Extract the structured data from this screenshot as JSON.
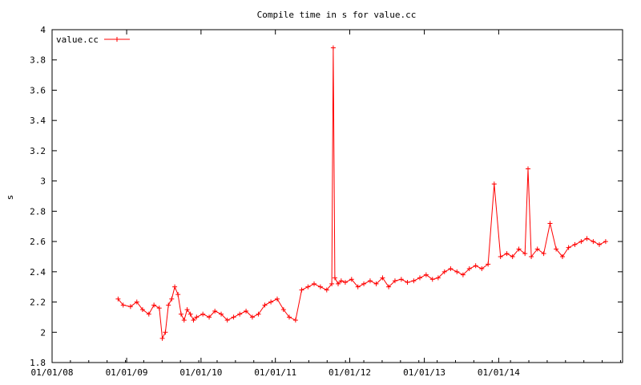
{
  "chart_data": {
    "type": "line",
    "title": "Compile time in s for value.cc",
    "xlabel": "",
    "ylabel": "s",
    "xlim": [
      "2008-01-01",
      "2015-09-01"
    ],
    "ylim": [
      1.8,
      4.0
    ],
    "y_ticks": [
      1.8,
      2.0,
      2.2,
      2.4,
      2.6,
      2.8,
      3.0,
      3.2,
      3.4,
      3.6,
      3.8,
      4.0
    ],
    "y_tick_labels": [
      "1.8",
      "2",
      "2.2",
      "2.4",
      "2.6",
      "2.8",
      "3",
      "3.2",
      "3.4",
      "3.6",
      "3.8",
      "4"
    ],
    "x_ticks": [
      "2008-01-01",
      "2009-01-01",
      "2010-01-01",
      "2011-01-01",
      "2012-01-01",
      "2013-01-01",
      "2014-01-01"
    ],
    "x_tick_labels": [
      "01/01/08",
      "01/01/09",
      "01/01/10",
      "01/01/11",
      "01/01/12",
      "01/01/13",
      "01/01/14"
    ],
    "grid": false,
    "legend": "top-left",
    "marker": "plus",
    "colors": {
      "series": "#ff0000",
      "axis": "#000000",
      "background": "#ffffff"
    },
    "series": [
      {
        "name": "value.cc",
        "x": [
          "2008-11-20",
          "2008-12-15",
          "2009-01-20",
          "2009-02-20",
          "2009-03-20",
          "2009-04-20",
          "2009-05-15",
          "2009-06-10",
          "2009-06-25",
          "2009-07-10",
          "2009-07-25",
          "2009-08-10",
          "2009-08-25",
          "2009-09-10",
          "2009-09-25",
          "2009-10-10",
          "2009-10-25",
          "2009-11-10",
          "2009-11-25",
          "2009-12-10",
          "2010-01-10",
          "2010-02-10",
          "2010-03-10",
          "2010-04-10",
          "2010-05-10",
          "2010-06-10",
          "2010-07-10",
          "2010-08-10",
          "2010-09-10",
          "2010-10-10",
          "2010-11-10",
          "2010-12-10",
          "2011-01-10",
          "2011-02-10",
          "2011-03-10",
          "2011-04-10",
          "2011-05-10",
          "2011-06-10",
          "2011-07-10",
          "2011-08-10",
          "2011-09-10",
          "2011-10-05",
          "2011-10-12",
          "2011-10-20",
          "2011-11-05",
          "2011-11-20",
          "2011-12-10",
          "2012-01-10",
          "2012-02-10",
          "2012-03-10",
          "2012-04-10",
          "2012-05-10",
          "2012-06-10",
          "2012-07-10",
          "2012-08-10",
          "2012-09-10",
          "2012-10-10",
          "2012-11-10",
          "2012-12-10",
          "2013-01-10",
          "2013-02-10",
          "2013-03-10",
          "2013-04-10",
          "2013-05-10",
          "2013-06-10",
          "2013-07-10",
          "2013-08-10",
          "2013-09-10",
          "2013-10-10",
          "2013-11-10",
          "2013-12-10",
          "2014-01-10",
          "2014-02-10",
          "2014-03-10",
          "2014-04-10",
          "2014-05-10",
          "2014-05-25",
          "2014-06-10",
          "2014-07-10",
          "2014-08-10",
          "2014-09-10",
          "2014-10-10",
          "2014-11-10",
          "2014-12-10",
          "2015-01-10",
          "2015-02-10",
          "2015-03-10",
          "2015-04-10",
          "2015-05-10",
          "2015-06-10"
        ],
        "y": [
          2.22,
          2.18,
          2.17,
          2.2,
          2.15,
          2.12,
          2.18,
          2.16,
          1.96,
          2.0,
          2.18,
          2.22,
          2.3,
          2.25,
          2.12,
          2.08,
          2.15,
          2.12,
          2.08,
          2.1,
          2.12,
          2.1,
          2.14,
          2.12,
          2.08,
          2.1,
          2.12,
          2.14,
          2.1,
          2.12,
          2.18,
          2.2,
          2.22,
          2.15,
          2.1,
          2.08,
          2.28,
          2.3,
          2.32,
          2.3,
          2.28,
          2.32,
          3.88,
          2.36,
          2.32,
          2.34,
          2.33,
          2.35,
          2.3,
          2.32,
          2.34,
          2.32,
          2.36,
          2.3,
          2.34,
          2.35,
          2.33,
          2.34,
          2.36,
          2.38,
          2.35,
          2.36,
          2.4,
          2.42,
          2.4,
          2.38,
          2.42,
          2.44,
          2.42,
          2.45,
          2.98,
          2.5,
          2.52,
          2.5,
          2.55,
          2.52,
          3.08,
          2.5,
          2.55,
          2.52,
          2.72,
          2.55,
          2.5,
          2.56,
          2.58,
          2.6,
          2.62,
          2.6,
          2.58,
          2.6
        ]
      }
    ]
  }
}
